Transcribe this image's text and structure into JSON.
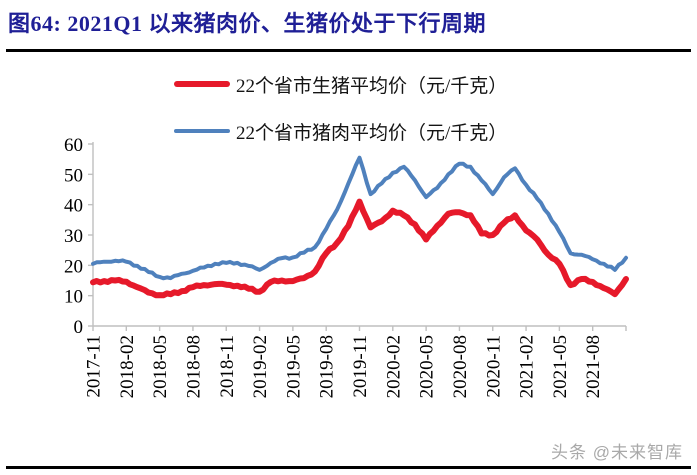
{
  "header": {
    "title": "图64:  2021Q1 以来猪肉价、生猪价处于下行周期"
  },
  "footer": {
    "watermark": "头条 @未来智库"
  },
  "chart_data": {
    "type": "line",
    "title": "",
    "xlabel": "",
    "ylabel": "",
    "unit": "元/千克",
    "grid": false,
    "legend_position": "top-center",
    "axis_color": "#bfbfbf",
    "ylim": [
      0,
      60
    ],
    "y_ticks": [
      0,
      10,
      20,
      30,
      40,
      50,
      60
    ],
    "months_per_tick": 3,
    "x_start": "2017-11",
    "x_end": "2021-11",
    "x_tick_labels": [
      "2017-11",
      "2018-02",
      "2018-05",
      "2018-08",
      "2018-11",
      "2019-02",
      "2019-05",
      "2019-08",
      "2019-11",
      "2020-02",
      "2020-05",
      "2020-08",
      "2020-11",
      "2021-02",
      "2021-05",
      "2021-08"
    ],
    "x_monthly": [
      "2017-11",
      "2017-12",
      "2018-01",
      "2018-02",
      "2018-03",
      "2018-04",
      "2018-05",
      "2018-06",
      "2018-07",
      "2018-08",
      "2018-09",
      "2018-10",
      "2018-11",
      "2018-12",
      "2019-01",
      "2019-02",
      "2019-03",
      "2019-04",
      "2019-05",
      "2019-06",
      "2019-07",
      "2019-08",
      "2019-09",
      "2019-10",
      "2019-11",
      "2019-12",
      "2020-01",
      "2020-02",
      "2020-03",
      "2020-04",
      "2020-05",
      "2020-06",
      "2020-07",
      "2020-08",
      "2020-09",
      "2020-10",
      "2020-11",
      "2020-12",
      "2021-01",
      "2021-02",
      "2021-03",
      "2021-04",
      "2021-05",
      "2021-06",
      "2021-07",
      "2021-08",
      "2021-09",
      "2021-10",
      "2021-11"
    ],
    "series": [
      {
        "name": "22个省市生猪平均价（元/千克）",
        "color": "#e6192a",
        "stroke_width": 6,
        "values": [
          14.4,
          14.8,
          15.0,
          14.6,
          12.8,
          11.0,
          10.2,
          10.5,
          11.5,
          12.8,
          13.5,
          13.8,
          13.6,
          13.3,
          12.3,
          11.3,
          14.5,
          15.0,
          14.8,
          15.8,
          18.0,
          24.0,
          27.5,
          33.0,
          41.0,
          32.5,
          34.5,
          38.0,
          36.5,
          33.5,
          28.5,
          33.0,
          37.0,
          37.5,
          36.5,
          30.5,
          30.0,
          34.0,
          36.5,
          31.5,
          28.5,
          23.5,
          20.5,
          13.5,
          15.5,
          14.5,
          12.5,
          10.5,
          15.5
        ]
      },
      {
        "name": "22个省市猪肉平均价（元/千克）",
        "color": "#4f81bd",
        "stroke_width": 4,
        "values": [
          20.5,
          21.2,
          21.5,
          21.2,
          19.8,
          17.8,
          16.2,
          15.8,
          17.2,
          18.2,
          19.3,
          20.5,
          20.8,
          20.8,
          19.8,
          18.5,
          20.8,
          22.4,
          22.6,
          24.2,
          26.0,
          32.0,
          38.5,
          47.0,
          55.5,
          43.5,
          47.0,
          50.5,
          52.5,
          48.0,
          42.5,
          45.5,
          50.0,
          53.5,
          52.5,
          48.0,
          43.5,
          49.0,
          52.0,
          46.5,
          42.0,
          37.0,
          31.0,
          24.0,
          23.5,
          22.0,
          20.5,
          18.5,
          22.5
        ]
      }
    ]
  }
}
